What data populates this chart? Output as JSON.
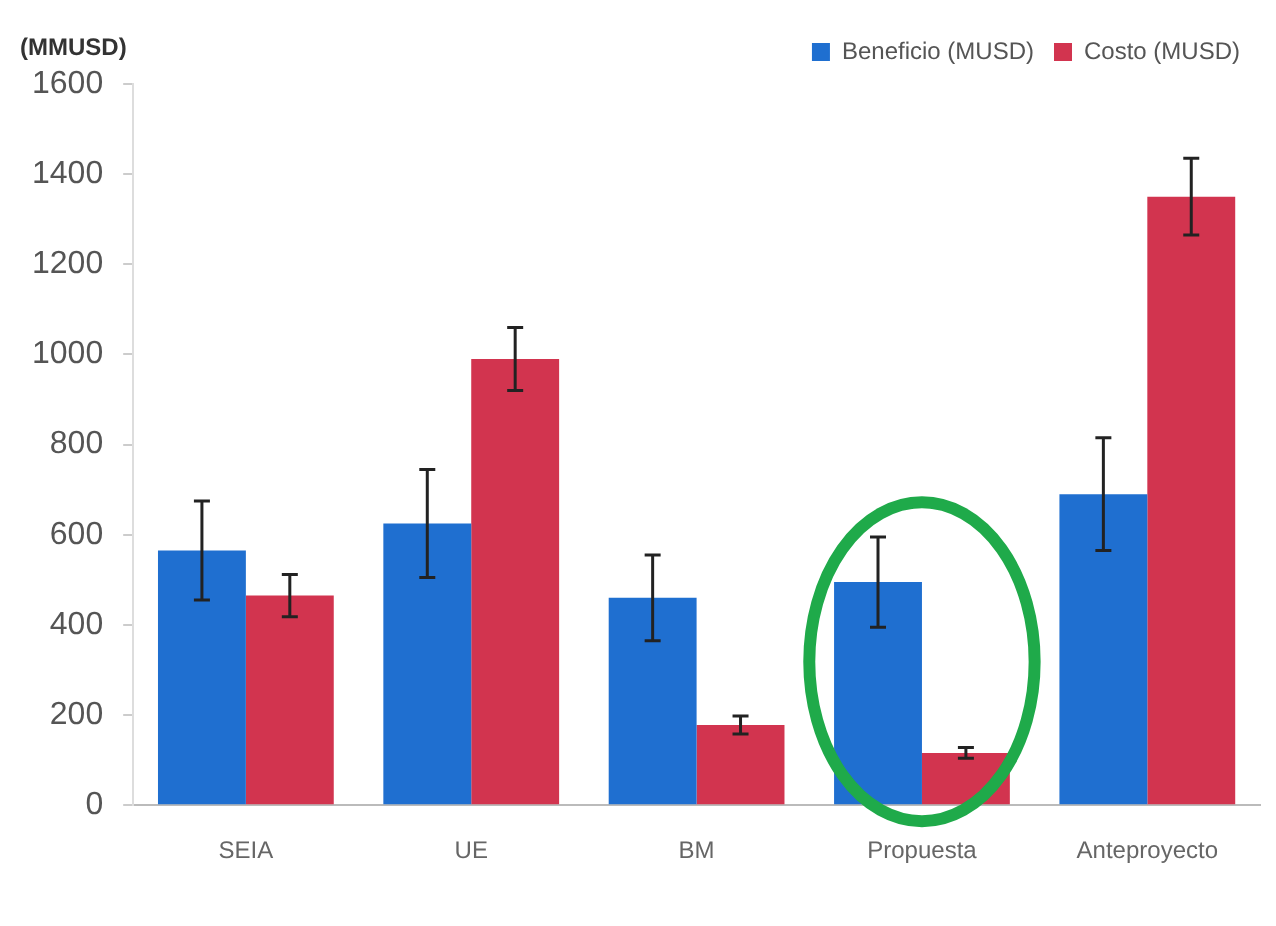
{
  "chart_data": {
    "type": "bar",
    "ylabel": "(MMUSD)",
    "categories": [
      "SEIA",
      "UE",
      "BM",
      "Propuesta",
      "Anteproyecto"
    ],
    "series": [
      {
        "name": "Beneficio (MUSD)",
        "color": "#1f6fd0",
        "values": [
          565,
          625,
          460,
          495,
          690
        ],
        "errors": [
          110,
          120,
          95,
          100,
          125
        ]
      },
      {
        "name": "Costo (MUSD)",
        "color": "#d2344f",
        "values": [
          465,
          990,
          178,
          116,
          1350
        ],
        "errors": [
          47,
          70,
          20,
          12,
          85
        ]
      }
    ],
    "ylim": [
      0,
      1600
    ],
    "yticks": [
      0,
      200,
      400,
      600,
      800,
      1000,
      1200,
      1400,
      1600
    ],
    "grid": false,
    "legend": "top right"
  }
}
